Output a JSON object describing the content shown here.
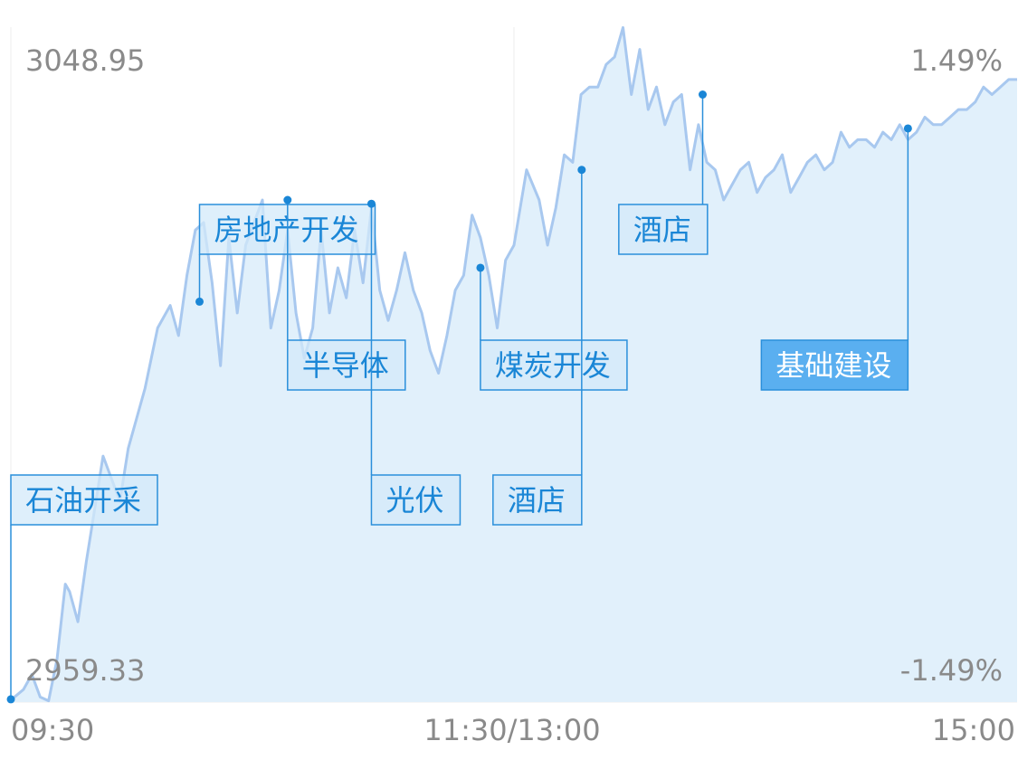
{
  "chart_data": {
    "type": "area",
    "y_left_max_label": "3048.95",
    "y_left_min_label": "2959.33",
    "y_right_max_label": "1.49%",
    "y_right_min_label": "-1.49%",
    "x_tick_labels": [
      "09:30",
      "11:30/13:00",
      "15:00"
    ],
    "ylim": [
      2959.33,
      3048.95
    ],
    "x_minutes_total": 240,
    "grid": true,
    "colors": {
      "line": "#a8c8ef",
      "fill": "#e1f0fb",
      "annotation_border": "#2a8fdb",
      "annotation_fill": "#d3e9fa",
      "annotation_active_fill": "#5aaff0",
      "annotation_text": "#1a86d6",
      "axis_text": "#8a8a8a"
    },
    "series": [
      {
        "x": [
          0,
          3,
          5,
          7,
          9,
          11,
          13,
          14,
          16,
          18,
          20,
          22,
          24,
          26,
          28,
          30,
          32,
          35,
          38,
          40,
          42,
          44,
          46,
          48,
          50,
          52,
          54,
          56,
          58,
          60,
          62,
          64,
          66,
          68,
          70,
          72,
          74,
          76,
          78,
          80,
          82,
          84,
          86,
          88,
          90,
          92,
          94,
          96,
          98,
          100,
          102,
          104,
          106,
          108,
          110,
          112,
          114,
          116,
          118,
          120,
          123,
          126,
          128,
          130,
          132,
          134,
          136,
          138,
          140,
          142,
          144,
          146,
          148,
          150,
          152,
          154,
          156,
          158,
          160,
          162,
          164,
          166,
          168,
          170,
          172,
          174,
          176,
          178,
          180,
          182,
          184,
          186,
          188,
          190,
          192,
          194,
          196,
          198,
          200,
          202,
          204,
          206,
          208,
          210,
          212,
          214,
          216,
          218,
          220,
          222,
          224,
          226,
          228,
          230,
          232,
          234,
          236,
          238,
          240
        ],
        "values": [
          2959.6,
          2961.0,
          2963.0,
          2960.0,
          2959.5,
          2965.0,
          2975.0,
          2974.0,
          2970.0,
          2978.0,
          2985.0,
          2992.0,
          2989.0,
          2986.0,
          2993.0,
          2997.0,
          3001.0,
          3009.0,
          3012.0,
          3008.0,
          3016.0,
          3022.0,
          3023.0,
          3015.0,
          3004.0,
          3021.0,
          3011.0,
          3020.0,
          3023.0,
          3026.0,
          3009.0,
          3014.0,
          3022.0,
          3011.0,
          3005.0,
          3009.0,
          3022.0,
          3011.0,
          3017.0,
          3013.0,
          3022.0,
          3015.0,
          3025.0,
          3014.0,
          3010.0,
          3014.0,
          3019.0,
          3014.0,
          3011.0,
          3006.0,
          3003.0,
          3008.0,
          3014.0,
          3016.0,
          3024.0,
          3021.0,
          3016.0,
          3009.0,
          3018.0,
          3020.0,
          3030.0,
          3026.0,
          3020.0,
          3025.0,
          3032.0,
          3031.0,
          3040.0,
          3041.0,
          3041.0,
          3044.0,
          3045.0,
          3048.9,
          3040.0,
          3046.0,
          3038.0,
          3041.0,
          3036.0,
          3039.0,
          3040.0,
          3030.0,
          3036.0,
          3031.0,
          3030.0,
          3026.0,
          3028.0,
          3030.0,
          3031.0,
          3027.0,
          3029.0,
          3030.0,
          3032.0,
          3027.0,
          3029.0,
          3031.0,
          3032.0,
          3030.0,
          3031.0,
          3035.0,
          3033.0,
          3034.0,
          3034.0,
          3033.0,
          3035.0,
          3034.0,
          3036.0,
          3034.0,
          3035.0,
          3037.0,
          3036.0,
          3036.0,
          3037.0,
          3038.0,
          3038.0,
          3039.0,
          3041.0,
          3040.0,
          3041.0,
          3042.0,
          3042.0
        ]
      }
    ],
    "annotations": [
      {
        "label": "石油开采",
        "x": 0,
        "value": 2959.7,
        "label_row": 3,
        "label_x": 0,
        "active": false
      },
      {
        "label": "房地产开发",
        "x": 45,
        "value": 3012.5,
        "label_row": 0,
        "label_x": 45,
        "active": false
      },
      {
        "label": "半导体",
        "x": 66,
        "value": 3026.0,
        "label_row": 2,
        "label_x": 66,
        "active": false
      },
      {
        "label": "光伏",
        "x": 86,
        "value": 3025.5,
        "label_row": 3,
        "label_x": 86,
        "active": false
      },
      {
        "label": "煤炭开发",
        "x": 112,
        "value": 3017.0,
        "label_row": 2,
        "label_x": 112,
        "active": false
      },
      {
        "label": "酒店",
        "x": 136,
        "value": 3030.0,
        "label_row": 3,
        "label_x": 115,
        "active": false
      },
      {
        "label": "酒店",
        "x": 165,
        "value": 3040.0,
        "label_row": 0,
        "label_x": 145,
        "active": false
      },
      {
        "label": "基础建设",
        "x": 214,
        "value": 3035.5,
        "label_row": 2,
        "label_x": 179,
        "active": true
      }
    ]
  }
}
